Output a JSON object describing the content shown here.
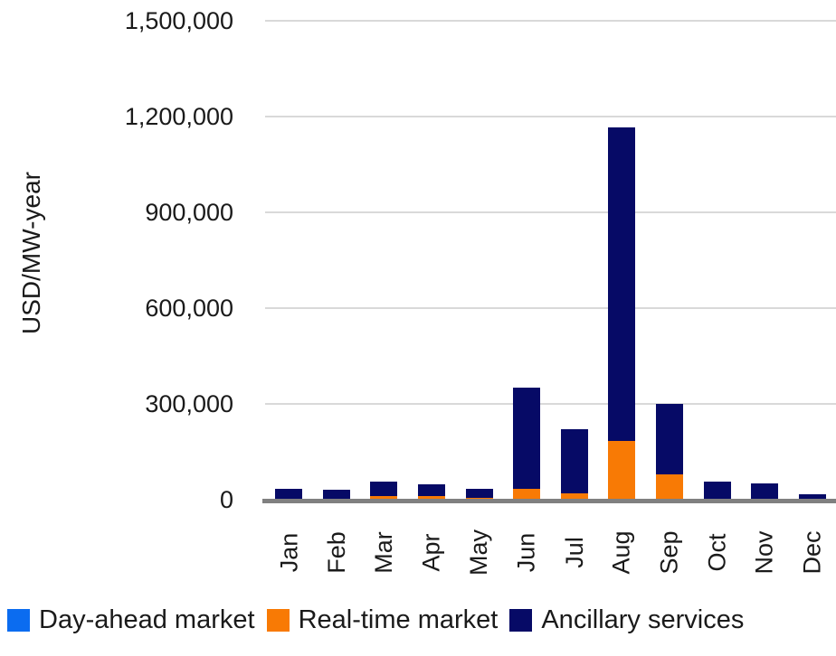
{
  "chart_data": {
    "type": "bar",
    "stacked": true,
    "title": "",
    "xlabel": "",
    "ylabel": "USD/MW-year",
    "categories": [
      "Jan",
      "Feb",
      "Mar",
      "Apr",
      "May",
      "Jun",
      "Jul",
      "Aug",
      "Sep",
      "Oct",
      "Nov",
      "Dec"
    ],
    "series": [
      {
        "name": "Day-ahead market",
        "color": "#0b6cf0",
        "values": [
          0,
          0,
          0,
          0,
          0,
          0,
          0,
          0,
          0,
          0,
          0,
          0
        ]
      },
      {
        "name": "Real-time market",
        "color": "#f87a05",
        "values": [
          0,
          0,
          12000,
          10000,
          7000,
          35000,
          20000,
          185000,
          80000,
          0,
          0,
          3000
        ]
      },
      {
        "name": "Ancillary services",
        "color": "#060a66",
        "values": [
          35000,
          32000,
          45000,
          38000,
          28000,
          315000,
          200000,
          980000,
          220000,
          57000,
          51000,
          14000
        ]
      }
    ],
    "ylim": [
      0,
      1500000
    ],
    "ytick_interval": 300000,
    "ytick_labels": [
      "0",
      "300,000",
      "600,000",
      "900,000",
      "1,200,000",
      "1,500,000"
    ],
    "grid": true,
    "legend_position": "bottom"
  },
  "styles": {
    "grid_color": "#d9d9d9",
    "axis_color": "#808080",
    "text_color": "#1a1a1a",
    "background": "#ffffff"
  }
}
